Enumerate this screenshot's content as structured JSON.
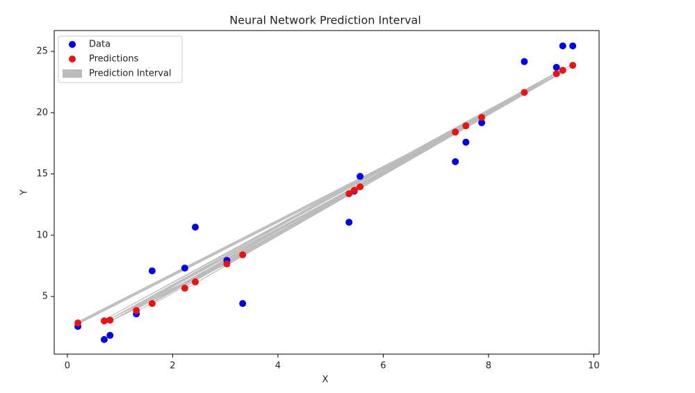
{
  "chart_data": {
    "type": "scatter",
    "title": "Neural Network Prediction Interval",
    "x_label": "X",
    "y_label": "Y",
    "x": [
      0.2,
      7.87,
      0.7,
      9.29,
      3.33,
      0.81,
      8.68,
      1.31,
      5.56,
      2.23,
      9.6,
      1.61,
      7.57,
      2.43,
      5.45,
      3.03,
      9.41,
      5.35,
      7.37
    ],
    "series": [
      {
        "name": "Data",
        "color": "#0000ee",
        "values": [
          2.56,
          19.18,
          1.49,
          23.7,
          4.43,
          1.83,
          24.17,
          3.58,
          14.8,
          7.32,
          25.45,
          7.09,
          17.59,
          10.66,
          13.6,
          7.95,
          25.45,
          11.06,
          16.0
        ]
      },
      {
        "name": "Predictions",
        "color": "#ee1111",
        "values": [
          2.84,
          19.61,
          3.01,
          23.18,
          8.4,
          3.07,
          21.65,
          3.86,
          13.95,
          5.68,
          23.86,
          4.43,
          18.93,
          6.19,
          13.67,
          7.66,
          23.46,
          13.38,
          18.42
        ]
      }
    ],
    "interval": {
      "name": "Prediction Interval",
      "color": "#bbbbbb",
      "lower": [
        2.74,
        19.51,
        2.91,
        23.08,
        8.3,
        2.97,
        21.55,
        3.76,
        13.85,
        5.58,
        23.76,
        4.33,
        18.83,
        6.09,
        13.57,
        7.56,
        23.36,
        13.28,
        18.32
      ],
      "upper": [
        2.94,
        19.71,
        3.11,
        23.28,
        8.5,
        3.17,
        21.75,
        3.96,
        14.05,
        5.78,
        23.96,
        4.53,
        19.03,
        6.29,
        13.77,
        7.76,
        23.56,
        13.48,
        18.52
      ]
    },
    "xlim": [
      -0.25,
      10.1
    ],
    "ylim": [
      0.3,
      26.7
    ],
    "xticks": [
      0,
      2,
      4,
      6,
      8,
      10
    ],
    "yticks": [
      5,
      10,
      15,
      20,
      25
    ],
    "grid": false,
    "legend": "upper left"
  }
}
